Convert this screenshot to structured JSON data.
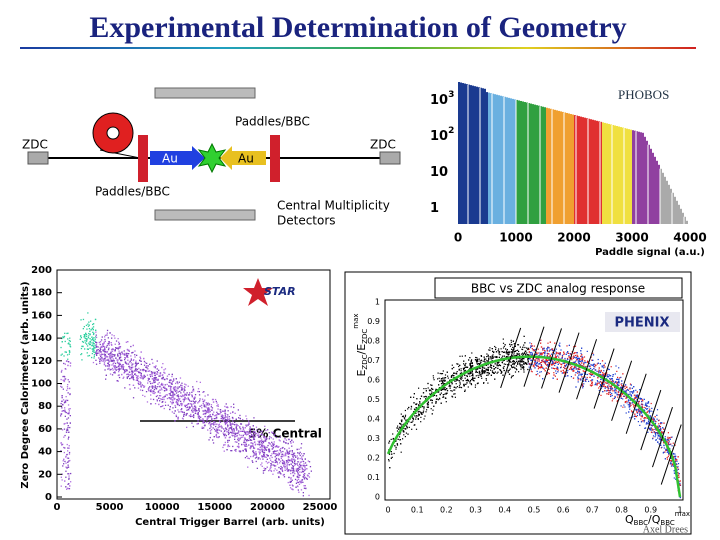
{
  "title": "Experimental Determination of Geometry",
  "diagram": {
    "zdc_left": "ZDC",
    "zdc_right": "ZDC",
    "paddles_top": "Paddles/BBC",
    "paddles_bottom": "Paddles/BBC",
    "beam_left": "Au",
    "beam_right": "Au",
    "detectors": [
      "Central Multiplicity",
      "Detectors"
    ]
  },
  "phobos": {
    "logo": "PHOBOS",
    "yticks": [
      {
        "base": "10",
        "sup": "3"
      },
      {
        "base": "10",
        "sup": "2"
      },
      {
        "base": "10",
        "sup": ""
      },
      {
        "base": "1",
        "sup": ""
      }
    ],
    "xticks": [
      0,
      1000,
      2000,
      3000,
      4000
    ],
    "xlabel": "Paddle signal (a.u.)"
  },
  "star": {
    "logo": "STAR",
    "annotation": "5% Central",
    "yticks": [
      0,
      20,
      40,
      60,
      80,
      100,
      120,
      140,
      160,
      180,
      200
    ],
    "xticks": [
      0,
      5000,
      10000,
      15000,
      20000,
      25000
    ],
    "ylabel": "Zero Degree Calorimeter (arb. units)",
    "xlabel": "Central Trigger Barrel (arb. units)"
  },
  "phenix": {
    "title": "BBC vs ZDC analog response",
    "logo": "PHENIX",
    "yticks": [
      0,
      0.1,
      0.2,
      0.3,
      0.4,
      0.5,
      0.6,
      0.7,
      0.8,
      0.9,
      1
    ],
    "xticks": [
      0,
      0.1,
      0.2,
      0.3,
      0.4,
      0.5,
      0.6,
      0.7,
      0.8,
      0.9,
      1
    ],
    "ylabel": {
      "main": "E",
      "sub": "ZDC",
      "mid": "/E",
      "sub2": "ZDC",
      "sup": "max"
    },
    "xlabel": {
      "main": "Q",
      "sub": "BBC",
      "mid": "/Q",
      "sub2": "BBC",
      "sup": "max"
    }
  },
  "footer": {
    "author": "Axel Drees"
  }
}
